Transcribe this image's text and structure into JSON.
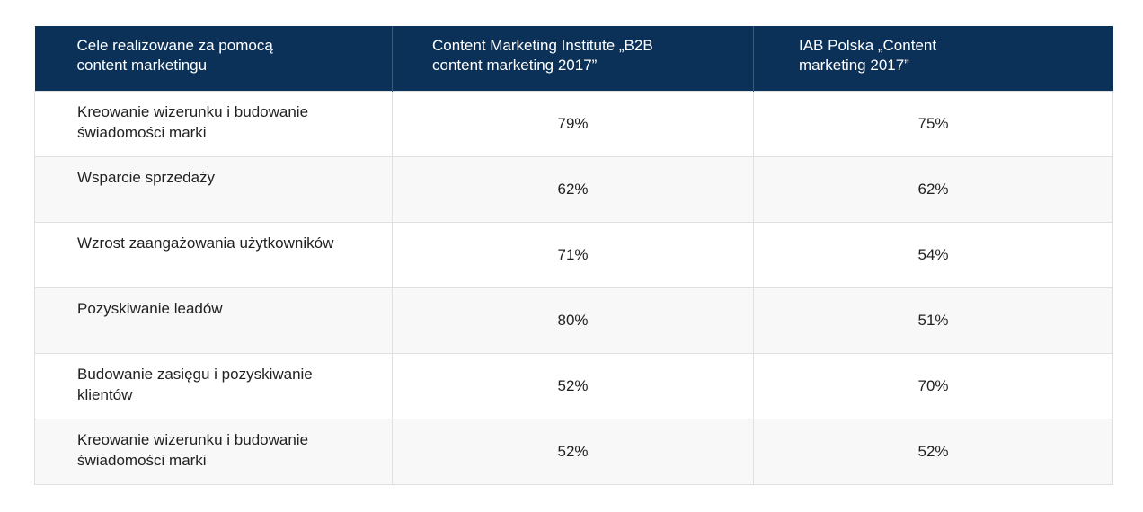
{
  "table": {
    "headers": [
      "Cele realizowane za pomocą content marketingu",
      "Content Marketing Institute „B2B content marketing 2017”",
      "IAB Polska „Content marketing 2017”"
    ],
    "rows": [
      {
        "goal": "Kreowanie wizerunku i budowanie świadomości marki",
        "cmi": "79%",
        "iab": "75%"
      },
      {
        "goal": "Wsparcie sprzedaży",
        "cmi": "62%",
        "iab": "62%"
      },
      {
        "goal": "Wzrost zaangażowania użytkowników",
        "cmi": "71%",
        "iab": "54%"
      },
      {
        "goal": "Pozyskiwanie leadów",
        "cmi": "80%",
        "iab": "51%"
      },
      {
        "goal": "Budowanie zasięgu i pozyskiwanie klientów",
        "cmi": "52%",
        "iab": "70%"
      },
      {
        "goal": "Kreowanie wizerunku i budowanie świadomości marki",
        "cmi": "52%",
        "iab": "52%"
      }
    ]
  },
  "colors": {
    "header_bg": "#0b3158",
    "header_text": "#ffffff",
    "alt_row": "#f8f8f8"
  }
}
